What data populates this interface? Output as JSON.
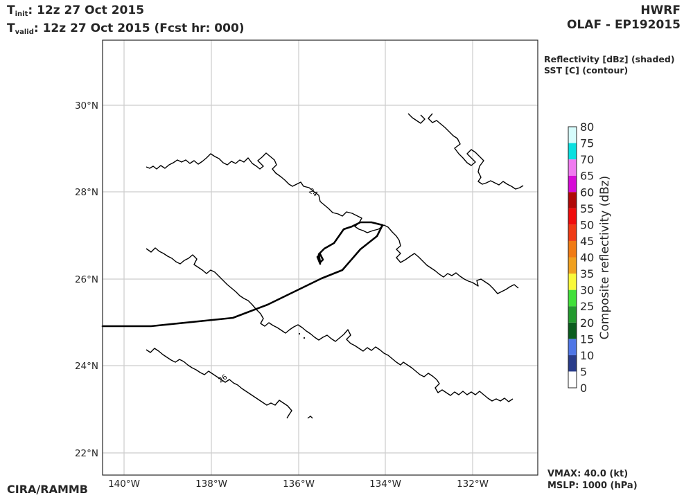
{
  "header": {
    "t_init_prefix": "T",
    "t_init_sub": "init",
    "t_init_value": ":  12z 27 Oct 2015",
    "t_valid_prefix": "T",
    "t_valid_sub": "valid",
    "t_valid_value": ": 12z 27 Oct 2015 (Fcst hr: 000)",
    "model": "HWRF",
    "storm": "OLAF - EP192015"
  },
  "legend": {
    "line1": "Reflectivity [dBz] (shaded)",
    "line2": "SST [C] (contour)"
  },
  "footer": {
    "credit": "CIRA/RAMMB",
    "vmax": "VMAX:  40.0 (kt)",
    "mslp": "MSLP: 1000 (hPa)"
  },
  "map": {
    "lon_range": [
      -140.5,
      -130.5
    ],
    "lat_range": [
      21.5,
      31.5
    ],
    "lon_ticks": [
      "140°W",
      "138°W",
      "136°W",
      "134°W",
      "132°W"
    ],
    "lat_ticks": [
      "30°N",
      "28°N",
      "26°N",
      "24°N",
      "22°N"
    ],
    "grid": true,
    "sst_contour_labels": [
      "24",
      "26"
    ]
  },
  "colorbar": {
    "label": "Composite reflectivity (dBz)",
    "ticks": [
      "0",
      "5",
      "10",
      "15",
      "20",
      "25",
      "30",
      "35",
      "40",
      "45",
      "50",
      "55",
      "60",
      "65",
      "70",
      "75",
      "80"
    ],
    "colors": [
      "#ffffff",
      "#293c8a",
      "#4f76e6",
      "#0a5c1e",
      "#239a2f",
      "#41e03a",
      "#f9f93a",
      "#f0a01e",
      "#f07a14",
      "#ef3a14",
      "#f00b0b",
      "#b00808",
      "#d60ad6",
      "#f07af0",
      "#0ae0e0",
      "#d6fcfc"
    ]
  }
}
